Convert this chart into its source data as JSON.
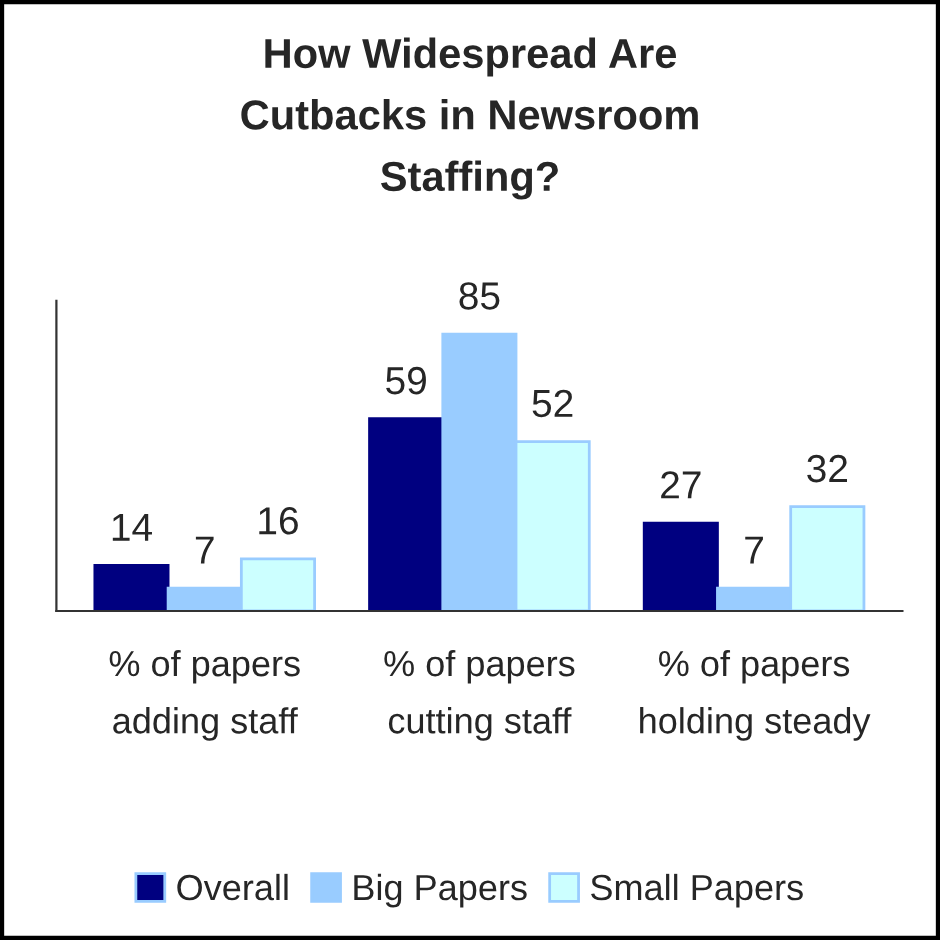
{
  "chart_data": {
    "type": "bar",
    "title": "How Widespread Are\nCutbacks in Newsroom\nStaffing?",
    "categories": [
      "% of papers\nadding staff",
      "% of papers\ncutting staff",
      "% of papers\nholding steady"
    ],
    "series": [
      {
        "name": "Overall",
        "color": "#000080",
        "values": [
          14,
          59,
          27
        ]
      },
      {
        "name": "Big Papers",
        "color": "#99ccff",
        "values": [
          7,
          85,
          7
        ]
      },
      {
        "name": "Small Papers",
        "color": "#ccffff",
        "values": [
          16,
          52,
          32
        ]
      }
    ],
    "data_labels": true,
    "legend": "bottom",
    "grid": false
  }
}
